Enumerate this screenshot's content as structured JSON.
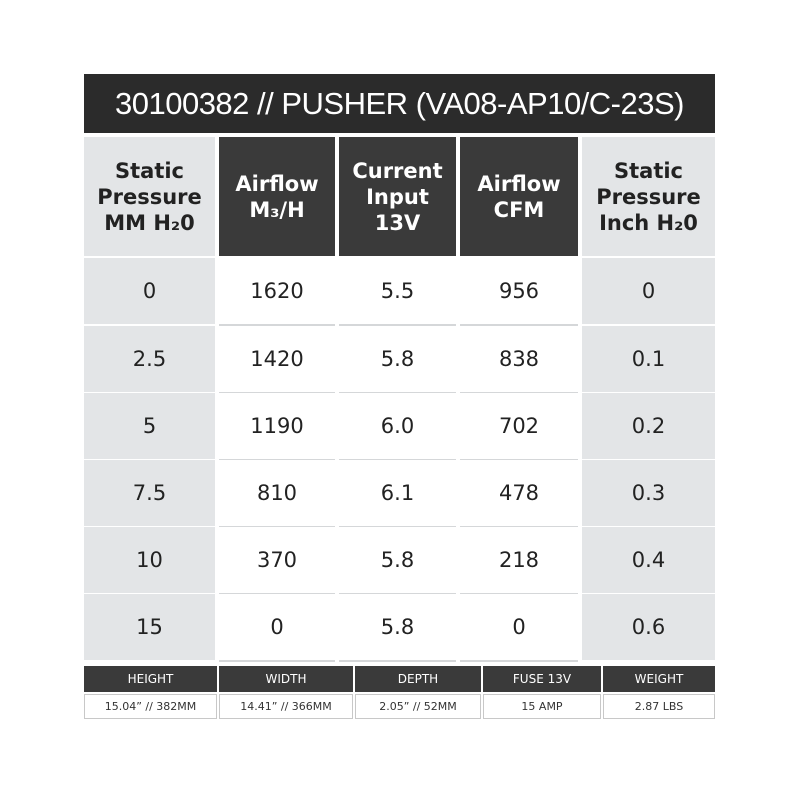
{
  "title": "30100382 // PUSHER (VA08-AP10/C-23S)",
  "table": {
    "headers": [
      [
        "Static",
        "Pressure",
        "MM H₂0"
      ],
      [
        "Airflow",
        "M₃/H"
      ],
      [
        "Current",
        "Input",
        "13V"
      ],
      [
        "Airflow",
        "CFM"
      ],
      [
        "Static",
        "Pressure",
        "Inch H₂0"
      ]
    ],
    "rows": [
      [
        "0",
        "1620",
        "5.5",
        "956",
        "0"
      ],
      [
        "2.5",
        "1420",
        "5.8",
        "838",
        "0.1"
      ],
      [
        "5",
        "1190",
        "6.0",
        "702",
        "0.2"
      ],
      [
        "7.5",
        "810",
        "6.1",
        "478",
        "0.3"
      ],
      [
        "10",
        "370",
        "5.8",
        "218",
        "0.4"
      ],
      [
        "15",
        "0",
        "5.8",
        "0",
        "0.6"
      ]
    ]
  },
  "specs": {
    "headers": [
      "HEIGHT",
      "WIDTH",
      "DEPTH",
      "FUSE 13V",
      "WEIGHT"
    ],
    "values": [
      "15.04” // 382MM",
      "14.41” // 366MM",
      "2.05” // 52MM",
      "15 AMP",
      "2.87 LBS"
    ]
  }
}
